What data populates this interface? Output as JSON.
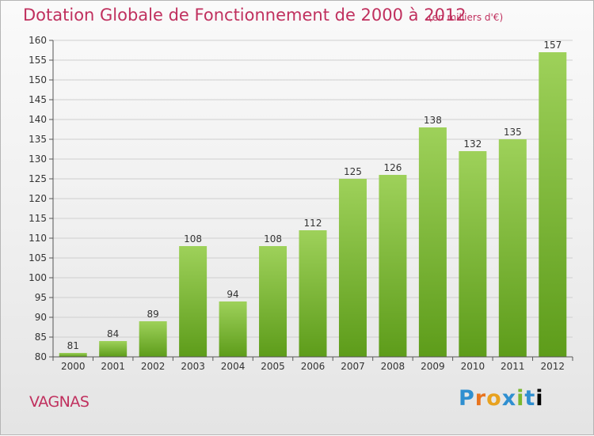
{
  "title": "Dotation Globale de Fonctionnement de 2000 à 2012",
  "subtitle": "(en milliers d'€)",
  "commune": "VAGNAS",
  "logo_text": "Proxiti",
  "colors": {
    "title": "#c0305e",
    "bar_light": "#9ed15a",
    "bar_dark": "#5d9c1a",
    "axis": "#555555",
    "grid": "#cfcfcf"
  },
  "chart_data": {
    "type": "bar",
    "title": "Dotation Globale de Fonctionnement de 2000 à 2012",
    "subtitle": "(en milliers d'€)",
    "categories": [
      "2000",
      "2001",
      "2002",
      "2003",
      "2004",
      "2005",
      "2006",
      "2007",
      "2008",
      "2009",
      "2010",
      "2011",
      "2012"
    ],
    "values": [
      81,
      84,
      89,
      108,
      94,
      108,
      112,
      125,
      126,
      138,
      132,
      135,
      157
    ],
    "ylim": [
      80,
      160
    ],
    "ytick_step": 5,
    "grid": true,
    "xlabel": "",
    "ylabel": ""
  }
}
